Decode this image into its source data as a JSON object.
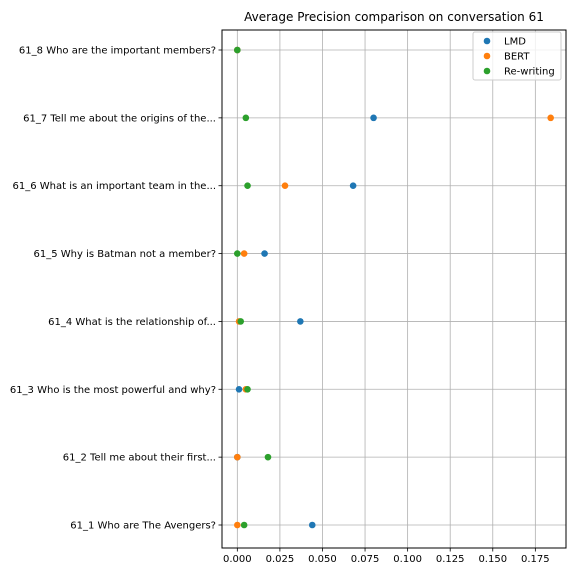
{
  "chart_data": {
    "type": "scatter",
    "title": "Average Precision comparison on conversation 61",
    "xlabel": "",
    "ylabel": "",
    "xlim": [
      -0.009,
      0.193
    ],
    "xticks": [
      0.0,
      0.025,
      0.05,
      0.075,
      0.1,
      0.125,
      0.15,
      0.175
    ],
    "xtick_labels": [
      "0.000",
      "0.025",
      "0.050",
      "0.075",
      "0.100",
      "0.125",
      "0.150",
      "0.175"
    ],
    "categories": [
      "61_1 Who are The Avengers?",
      "61_2 Tell me about their first...",
      "61_3 Who is the most powerful and why?",
      "61_4 What is the relationship of...",
      "61_5 Why is Batman not a member?",
      "61_6 What is an important team in the...",
      "61_7 Tell me about the origins of the...",
      "61_8 Who are the important members?"
    ],
    "grid": true,
    "legend_position": "top-right",
    "series": [
      {
        "name": "LMD",
        "color": "#1f77b4",
        "values": [
          0.044,
          0.0,
          0.001,
          0.037,
          0.016,
          0.068,
          0.08,
          0.0
        ]
      },
      {
        "name": "BERT",
        "color": "#ff7f0e",
        "values": [
          0.0,
          0.0,
          0.005,
          0.001,
          0.004,
          0.028,
          0.184,
          0.0
        ]
      },
      {
        "name": "Re-writing",
        "color": "#2ca02c",
        "values": [
          0.004,
          0.018,
          0.006,
          0.002,
          0.0,
          0.006,
          0.005,
          0.0
        ]
      }
    ]
  }
}
